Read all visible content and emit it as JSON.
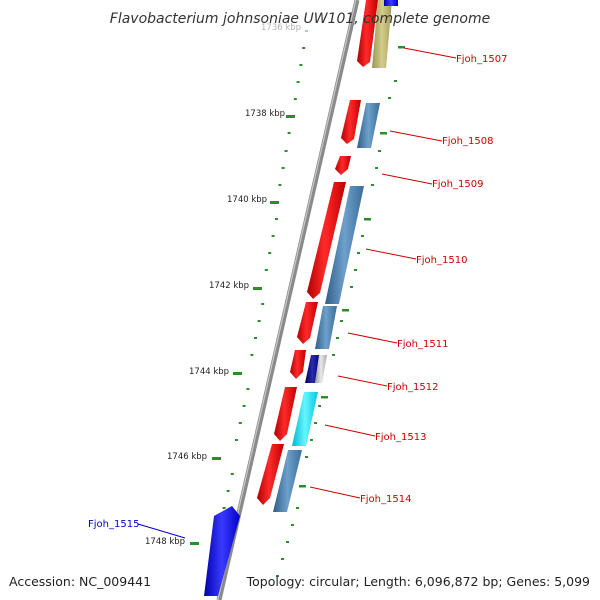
{
  "title": "Flavobacterium johnsoniae UW101, complete genome",
  "accession": "Accession: NC_009441",
  "topology": "Topology: circular; Length: 6,096,872 bp; Genes: 5,099",
  "kbp_labels": [
    {
      "text": "1736 kbp",
      "faded": true
    },
    {
      "text": "1738 kbp",
      "faded": false
    },
    {
      "text": "1740 kbp",
      "faded": false
    },
    {
      "text": "1742 kbp",
      "faded": false
    },
    {
      "text": "1744 kbp",
      "faded": false
    },
    {
      "text": "1746 kbp",
      "faded": false
    },
    {
      "text": "1748 kbp",
      "faded": false
    }
  ],
  "gene_labels": [
    {
      "text": "Fjoh_1507",
      "color": "#cc0000"
    },
    {
      "text": "Fjoh_1508",
      "color": "#cc0000"
    },
    {
      "text": "Fjoh_1509",
      "color": "#cc0000"
    },
    {
      "text": "Fjoh_1510",
      "color": "#cc0000"
    },
    {
      "text": "Fjoh_1511",
      "color": "#cc0000"
    },
    {
      "text": "Fjoh_1512",
      "color": "#cc0000"
    },
    {
      "text": "Fjoh_1513",
      "color": "#cc0000"
    },
    {
      "text": "Fjoh_1514",
      "color": "#cc0000"
    },
    {
      "text": "Fjoh_1515",
      "color": "#0000cc"
    }
  ],
  "colors": {
    "red_gene": "#ff0000",
    "steelblue_gene": "#4682b4",
    "khaki_gene": "#bdb76b",
    "cyan_gene": "#00e5ff",
    "navy_gene": "#000080",
    "blue_gene": "#0000ff",
    "backbone": "#8a8a8a",
    "tick": "#2e8b2e"
  }
}
